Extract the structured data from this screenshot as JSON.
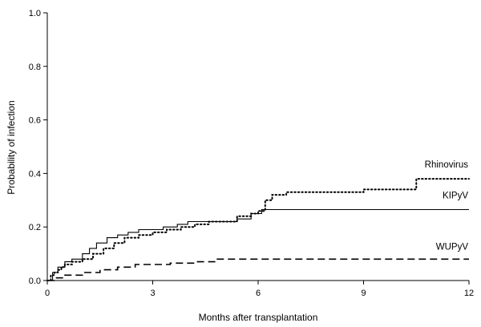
{
  "chart_data": {
    "type": "line",
    "step": true,
    "title": "",
    "xlabel": "Months after transplantation",
    "ylabel": "Probability of infection",
    "xlim": [
      0,
      12
    ],
    "ylim": [
      0,
      1.0
    ],
    "xticks": [
      0,
      3,
      6,
      9,
      12
    ],
    "yticks": [
      "0.0",
      "0.2",
      "0.4",
      "0.6",
      "0.8",
      "1.0"
    ],
    "grid": false,
    "legend": "inline labels at right",
    "series": [
      {
        "name": "Rhinovirus",
        "style": "dotted",
        "x": [
          0,
          0.1,
          0.2,
          0.3,
          0.4,
          0.5,
          0.7,
          1.0,
          1.3,
          1.6,
          1.9,
          2.2,
          2.6,
          3.0,
          3.4,
          3.8,
          4.2,
          4.6,
          5.0,
          5.4,
          5.8,
          6.0,
          6.2,
          6.4,
          6.8,
          7.5,
          8.5,
          9.0,
          10.0,
          10.5,
          12.0
        ],
        "y": [
          0,
          0.02,
          0.03,
          0.04,
          0.05,
          0.06,
          0.07,
          0.08,
          0.1,
          0.12,
          0.14,
          0.16,
          0.17,
          0.18,
          0.19,
          0.2,
          0.21,
          0.22,
          0.22,
          0.24,
          0.25,
          0.26,
          0.3,
          0.32,
          0.33,
          0.33,
          0.33,
          0.34,
          0.34,
          0.38,
          0.38
        ]
      },
      {
        "name": "KIPyV",
        "style": "solid",
        "x": [
          0,
          0.15,
          0.3,
          0.5,
          0.7,
          1.0,
          1.2,
          1.4,
          1.7,
          2.0,
          2.3,
          2.6,
          2.9,
          3.3,
          3.7,
          4.0,
          4.5,
          5.0,
          5.4,
          5.8,
          6.1,
          12.0
        ],
        "y": [
          0,
          0.03,
          0.05,
          0.07,
          0.08,
          0.1,
          0.12,
          0.14,
          0.16,
          0.17,
          0.18,
          0.19,
          0.19,
          0.2,
          0.21,
          0.22,
          0.22,
          0.22,
          0.23,
          0.25,
          0.265,
          0.265
        ]
      },
      {
        "name": "WUPyV",
        "style": "dashed",
        "x": [
          0,
          0.2,
          0.5,
          1.0,
          1.5,
          2.0,
          2.5,
          3.5,
          4.2,
          4.8,
          12.0
        ],
        "y": [
          0,
          0.01,
          0.02,
          0.03,
          0.04,
          0.05,
          0.06,
          0.065,
          0.07,
          0.08,
          0.08
        ]
      }
    ]
  }
}
